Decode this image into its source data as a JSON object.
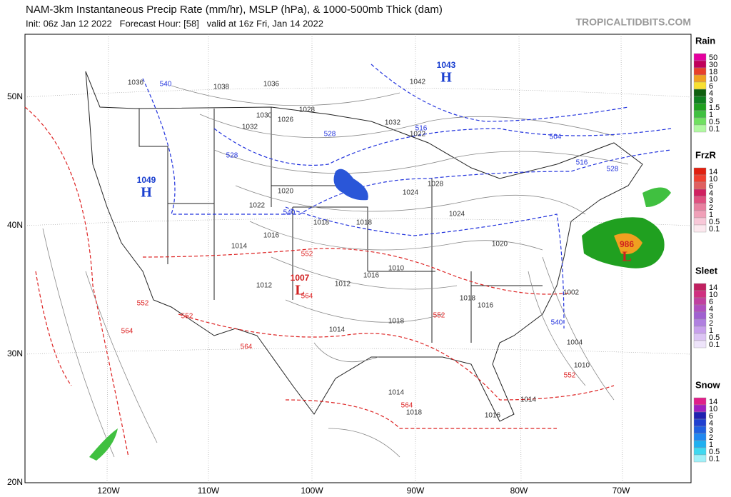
{
  "header": {
    "title": "NAM-3km Instantaneous Precip Rate (mm/hr), MSLP (hPa), & 1000-500mb Thick (dam)",
    "subtitle": "Init: 06z Jan 12 2022   Forecast Hour: [58]   valid at 16z Fri, Jan 14 2022",
    "watermark": "TROPICALTIDBITS.COM"
  },
  "map": {
    "lat_labels": [
      "50N",
      "40N",
      "30N",
      "20N"
    ],
    "lon_labels": [
      "120W",
      "110W",
      "100W",
      "90W",
      "80W",
      "70W"
    ],
    "centers": [
      {
        "value": "1043",
        "letter": "H",
        "color": "#1a3fd0"
      },
      {
        "value": "1049",
        "letter": "H",
        "color": "#1a3fd0"
      },
      {
        "value": "1007",
        "letter": "L",
        "color": "#d02020"
      },
      {
        "value": "986",
        "letter": "L",
        "color": "#d02020"
      }
    ],
    "pressure_labels": [
      "1036",
      "1038",
      "1042",
      "1036",
      "1032",
      "1028",
      "1026",
      "1030",
      "1024",
      "1020",
      "1018",
      "1016",
      "1014",
      "1012",
      "1022",
      "1018",
      "1016",
      "1014",
      "1012",
      "1010",
      "1016",
      "1018",
      "1020",
      "1024",
      "1028",
      "1032",
      "1022",
      "1018",
      "1014",
      "1002",
      "1004",
      "1010",
      "1014",
      "1018",
      "1016"
    ],
    "thickness_labels": [
      "540",
      "528",
      "516",
      "504",
      "516",
      "528",
      "540",
      "552",
      "552",
      "564",
      "564",
      "552",
      "564",
      "552",
      "552",
      "564",
      "540",
      "528"
    ]
  },
  "legend": [
    {
      "name": "Rain",
      "items": [
        {
          "label": "50",
          "color": "#e4009e"
        },
        {
          "label": "30",
          "color": "#c0005a"
        },
        {
          "label": "18",
          "color": "#e8402a"
        },
        {
          "label": "10",
          "color": "#f0a020"
        },
        {
          "label": "6",
          "color": "#f8e030"
        },
        {
          "label": "4",
          "color": "#106010"
        },
        {
          "label": "3",
          "color": "#108020"
        },
        {
          "label": "1.5",
          "color": "#20a020"
        },
        {
          "label": "1",
          "color": "#40c040"
        },
        {
          "label": "0.5",
          "color": "#70e060"
        },
        {
          "label": "0.1",
          "color": "#b0f8a0"
        }
      ]
    },
    {
      "name": "FrzR",
      "items": [
        {
          "label": "14",
          "color": "#e02010"
        },
        {
          "label": "10",
          "color": "#f04030"
        },
        {
          "label": "6",
          "color": "#e06060"
        },
        {
          "label": "4",
          "color": "#d02060"
        },
        {
          "label": "3",
          "color": "#e05080"
        },
        {
          "label": "2",
          "color": "#e880a0"
        },
        {
          "label": "1",
          "color": "#f0a0b8"
        },
        {
          "label": "0.5",
          "color": "#f8c8d8"
        },
        {
          "label": "0.1",
          "color": "#fce8ee"
        }
      ]
    },
    {
      "name": "Sleet",
      "items": [
        {
          "label": "14",
          "color": "#c02060"
        },
        {
          "label": "10",
          "color": "#d03080"
        },
        {
          "label": "6",
          "color": "#c040a0"
        },
        {
          "label": "4",
          "color": "#b050c0"
        },
        {
          "label": "3",
          "color": "#a060d0"
        },
        {
          "label": "2",
          "color": "#b080e0"
        },
        {
          "label": "1",
          "color": "#c8a0ec"
        },
        {
          "label": "0.5",
          "color": "#dcc4f4"
        },
        {
          "label": "0.1",
          "color": "#eee4fa"
        }
      ]
    },
    {
      "name": "Snow",
      "items": [
        {
          "label": "14",
          "color": "#e0208a"
        },
        {
          "label": "10",
          "color": "#a020c0"
        },
        {
          "label": "6",
          "color": "#2020b0"
        },
        {
          "label": "4",
          "color": "#2040d0"
        },
        {
          "label": "3",
          "color": "#2060e0"
        },
        {
          "label": "2",
          "color": "#2088f0"
        },
        {
          "label": "1",
          "color": "#20b0f0"
        },
        {
          "label": "0.5",
          "color": "#40d8f0"
        },
        {
          "label": "0.1",
          "color": "#a0f0f8"
        }
      ]
    }
  ]
}
